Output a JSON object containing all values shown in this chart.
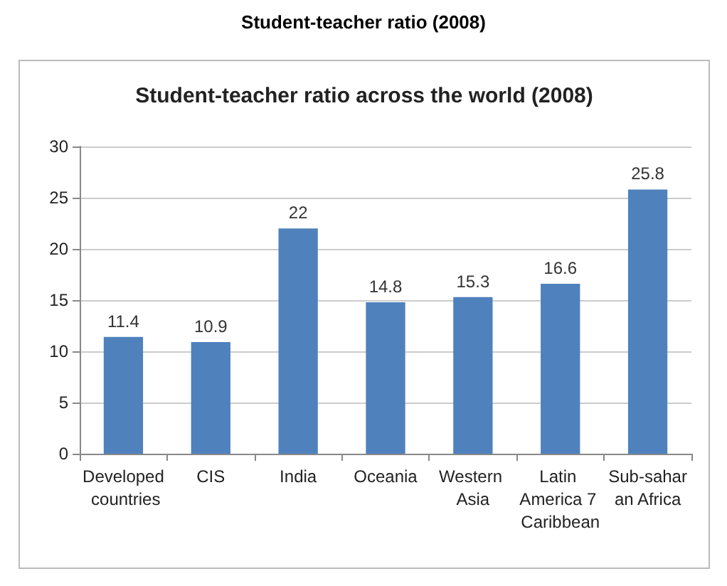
{
  "chart_data": {
    "type": "bar",
    "title": "Student-teacher ratio (2008)",
    "subtitle": "Student-teacher ratio across the world (2008)",
    "categories": [
      "Developed countries",
      "CIS",
      "India",
      "Oceania",
      "Western Asia",
      "Latin America 7 Caribbean",
      "Sub-saharan Africa"
    ],
    "values": [
      11.4,
      10.9,
      22,
      14.8,
      15.3,
      16.6,
      25.8
    ],
    "color": "#4f81bd",
    "ylim": [
      0,
      30
    ],
    "yticks": [
      0,
      5,
      10,
      15,
      20,
      25,
      30
    ],
    "grid": "y",
    "data_labels": true
  }
}
